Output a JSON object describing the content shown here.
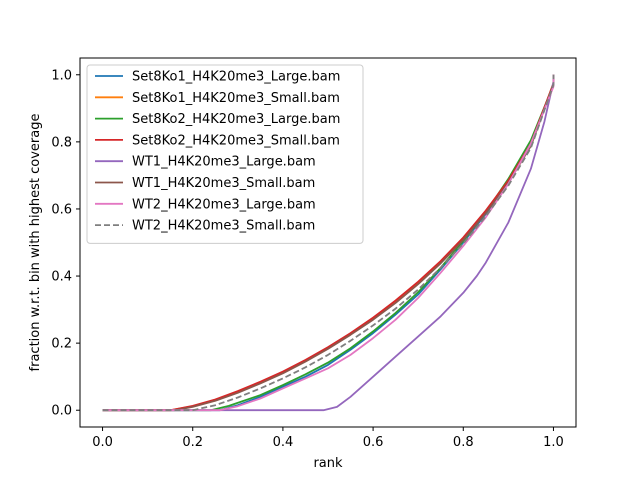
{
  "chart_data": {
    "type": "line",
    "title": "",
    "xlabel": "rank",
    "ylabel": "fraction w.r.t. bin with highest coverage",
    "xlim": [
      -0.05,
      1.05
    ],
    "ylim": [
      -0.05,
      1.05
    ],
    "xticks": [
      "0.0",
      "0.2",
      "0.4",
      "0.6",
      "0.8",
      "1.0"
    ],
    "yticks": [
      "0.0",
      "0.2",
      "0.4",
      "0.6",
      "0.8",
      "1.0"
    ],
    "grid": false,
    "legend_position": "top-left",
    "series": [
      {
        "name": "Set8Ko1_H4K20me3_Large.bam",
        "color": "#1f77b4",
        "dash": "solid",
        "points": [
          [
            0,
            0
          ],
          [
            0.26,
            0
          ],
          [
            0.3,
            0.015
          ],
          [
            0.35,
            0.04
          ],
          [
            0.4,
            0.07
          ],
          [
            0.45,
            0.1
          ],
          [
            0.5,
            0.135
          ],
          [
            0.55,
            0.18
          ],
          [
            0.6,
            0.23
          ],
          [
            0.65,
            0.285
          ],
          [
            0.7,
            0.345
          ],
          [
            0.75,
            0.42
          ],
          [
            0.8,
            0.5
          ],
          [
            0.85,
            0.585
          ],
          [
            0.9,
            0.68
          ],
          [
            0.95,
            0.8
          ],
          [
            1.0,
            0.97
          ],
          [
            1.0,
            1.0
          ]
        ]
      },
      {
        "name": "Set8Ko1_H4K20me3_Small.bam",
        "color": "#ff7f0e",
        "dash": "solid",
        "points": [
          [
            0,
            0
          ],
          [
            0.15,
            0
          ],
          [
            0.2,
            0.012
          ],
          [
            0.25,
            0.03
          ],
          [
            0.3,
            0.055
          ],
          [
            0.35,
            0.083
          ],
          [
            0.4,
            0.113
          ],
          [
            0.45,
            0.147
          ],
          [
            0.5,
            0.185
          ],
          [
            0.55,
            0.226
          ],
          [
            0.6,
            0.272
          ],
          [
            0.65,
            0.322
          ],
          [
            0.7,
            0.378
          ],
          [
            0.75,
            0.44
          ],
          [
            0.8,
            0.51
          ],
          [
            0.85,
            0.59
          ],
          [
            0.9,
            0.68
          ],
          [
            0.95,
            0.79
          ],
          [
            1.0,
            0.975
          ],
          [
            1.0,
            1.0
          ]
        ]
      },
      {
        "name": "Set8Ko2_H4K20me3_Large.bam",
        "color": "#2ca02c",
        "dash": "solid",
        "points": [
          [
            0,
            0
          ],
          [
            0.24,
            0
          ],
          [
            0.28,
            0.013
          ],
          [
            0.35,
            0.045
          ],
          [
            0.4,
            0.075
          ],
          [
            0.45,
            0.107
          ],
          [
            0.5,
            0.142
          ],
          [
            0.55,
            0.185
          ],
          [
            0.6,
            0.235
          ],
          [
            0.65,
            0.29
          ],
          [
            0.7,
            0.352
          ],
          [
            0.75,
            0.425
          ],
          [
            0.8,
            0.505
          ],
          [
            0.85,
            0.59
          ],
          [
            0.9,
            0.69
          ],
          [
            0.95,
            0.805
          ],
          [
            1.0,
            0.97
          ],
          [
            1.0,
            1.0
          ]
        ]
      },
      {
        "name": "Set8Ko2_H4K20me3_Small.bam",
        "color": "#d62728",
        "dash": "solid",
        "points": [
          [
            0,
            0
          ],
          [
            0.15,
            0
          ],
          [
            0.2,
            0.013
          ],
          [
            0.25,
            0.032
          ],
          [
            0.3,
            0.057
          ],
          [
            0.35,
            0.085
          ],
          [
            0.4,
            0.115
          ],
          [
            0.45,
            0.15
          ],
          [
            0.5,
            0.188
          ],
          [
            0.55,
            0.23
          ],
          [
            0.6,
            0.276
          ],
          [
            0.65,
            0.327
          ],
          [
            0.7,
            0.383
          ],
          [
            0.75,
            0.445
          ],
          [
            0.8,
            0.515
          ],
          [
            0.85,
            0.595
          ],
          [
            0.9,
            0.685
          ],
          [
            0.95,
            0.795
          ],
          [
            1.0,
            0.975
          ],
          [
            1.0,
            1.0
          ]
        ]
      },
      {
        "name": "WT1_H4K20me3_Large.bam",
        "color": "#9467bd",
        "dash": "solid",
        "points": [
          [
            0,
            0
          ],
          [
            0.49,
            0
          ],
          [
            0.52,
            0.01
          ],
          [
            0.55,
            0.04
          ],
          [
            0.6,
            0.1
          ],
          [
            0.65,
            0.16
          ],
          [
            0.7,
            0.22
          ],
          [
            0.75,
            0.28
          ],
          [
            0.8,
            0.35
          ],
          [
            0.83,
            0.4
          ],
          [
            0.85,
            0.44
          ],
          [
            0.9,
            0.56
          ],
          [
            0.95,
            0.72
          ],
          [
            0.98,
            0.86
          ],
          [
            1.0,
            0.98
          ],
          [
            1.0,
            1.0
          ]
        ]
      },
      {
        "name": "WT1_H4K20me3_Small.bam",
        "color": "#8c564b",
        "dash": "solid",
        "points": [
          [
            0,
            0
          ],
          [
            0.16,
            0
          ],
          [
            0.2,
            0.01
          ],
          [
            0.25,
            0.028
          ],
          [
            0.3,
            0.052
          ],
          [
            0.35,
            0.08
          ],
          [
            0.4,
            0.11
          ],
          [
            0.45,
            0.145
          ],
          [
            0.5,
            0.183
          ],
          [
            0.55,
            0.225
          ],
          [
            0.6,
            0.27
          ],
          [
            0.65,
            0.32
          ],
          [
            0.7,
            0.376
          ],
          [
            0.75,
            0.438
          ],
          [
            0.8,
            0.508
          ],
          [
            0.85,
            0.588
          ],
          [
            0.9,
            0.678
          ],
          [
            0.95,
            0.788
          ],
          [
            1.0,
            0.972
          ],
          [
            1.0,
            1.0
          ]
        ]
      },
      {
        "name": "WT2_H4K20me3_Large.bam",
        "color": "#e377c2",
        "dash": "solid",
        "points": [
          [
            0,
            0
          ],
          [
            0.26,
            0
          ],
          [
            0.3,
            0.012
          ],
          [
            0.35,
            0.035
          ],
          [
            0.4,
            0.065
          ],
          [
            0.45,
            0.095
          ],
          [
            0.5,
            0.125
          ],
          [
            0.55,
            0.165
          ],
          [
            0.6,
            0.215
          ],
          [
            0.65,
            0.27
          ],
          [
            0.7,
            0.335
          ],
          [
            0.75,
            0.41
          ],
          [
            0.8,
            0.49
          ],
          [
            0.85,
            0.575
          ],
          [
            0.9,
            0.675
          ],
          [
            0.95,
            0.795
          ],
          [
            1.0,
            0.965
          ],
          [
            1.0,
            1.0
          ]
        ]
      },
      {
        "name": "WT2_H4K20me3_Small.bam",
        "color": "#7f7f7f",
        "dash": "dashed",
        "points": [
          [
            0,
            0
          ],
          [
            0.2,
            0
          ],
          [
            0.25,
            0.015
          ],
          [
            0.3,
            0.038
          ],
          [
            0.35,
            0.065
          ],
          [
            0.4,
            0.095
          ],
          [
            0.45,
            0.128
          ],
          [
            0.5,
            0.165
          ],
          [
            0.55,
            0.207
          ],
          [
            0.6,
            0.253
          ],
          [
            0.65,
            0.303
          ],
          [
            0.7,
            0.36
          ],
          [
            0.75,
            0.425
          ],
          [
            0.8,
            0.497
          ],
          [
            0.85,
            0.578
          ],
          [
            0.9,
            0.67
          ],
          [
            0.95,
            0.782
          ],
          [
            1.0,
            0.97
          ],
          [
            1.0,
            1.0
          ]
        ]
      }
    ]
  }
}
